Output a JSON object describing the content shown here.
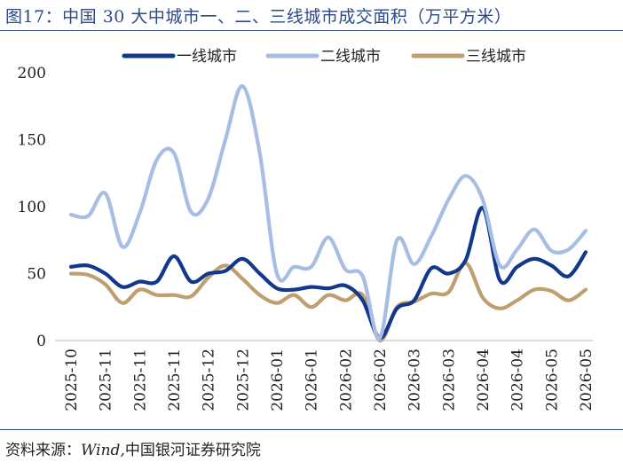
{
  "header": {
    "title": "图17：中国 30 大中城市一、二、三线城市成交面积（万平方米）"
  },
  "footer": {
    "source_label": "资料来源：",
    "source_wind": "Wind,",
    "source_org": "中国银河证券研究院"
  },
  "colors": {
    "tier1": "#12388c",
    "tier2": "#a8bde3",
    "tier3": "#bf9f6f",
    "brand": "#2a4a8c"
  },
  "chart_data": {
    "type": "line",
    "title": "",
    "xlabel": "",
    "ylabel": "",
    "ylim": [
      0,
      200
    ],
    "yticks": [
      0,
      50,
      100,
      150,
      200
    ],
    "grid": false,
    "legend_position": "top",
    "x_tick_labels": [
      "2025-10",
      "2025-11",
      "2025-11",
      "2025-11",
      "2025-12",
      "2025-12",
      "2026-01",
      "2026-01",
      "2026-02",
      "2026-02",
      "2026-03",
      "2026-03",
      "2026-04",
      "2026-04",
      "2026-05",
      "2026-05"
    ],
    "series": [
      {
        "name": "一线城市",
        "color": "#12388c",
        "values": [
          55,
          56,
          50,
          40,
          44,
          44,
          63,
          44,
          50,
          52,
          61,
          50,
          39,
          38,
          40,
          39,
          41,
          30,
          2,
          24,
          30,
          54,
          50,
          60,
          99,
          45,
          55,
          61,
          56,
          48,
          66
        ]
      },
      {
        "name": "二线城市",
        "color": "#a8bde3",
        "values": [
          94,
          93,
          110,
          70,
          95,
          135,
          140,
          96,
          106,
          150,
          190,
          140,
          50,
          55,
          55,
          77,
          53,
          48,
          2,
          75,
          57,
          78,
          105,
          123,
          105,
          56,
          68,
          83,
          67,
          68,
          82
        ]
      },
      {
        "name": "三线城市",
        "color": "#bf9f6f",
        "values": [
          50,
          49,
          42,
          28,
          38,
          34,
          34,
          33,
          47,
          56,
          46,
          34,
          28,
          34,
          25,
          34,
          30,
          34,
          0,
          25,
          29,
          35,
          36,
          58,
          32,
          24,
          30,
          38,
          37,
          30,
          38
        ]
      }
    ]
  }
}
